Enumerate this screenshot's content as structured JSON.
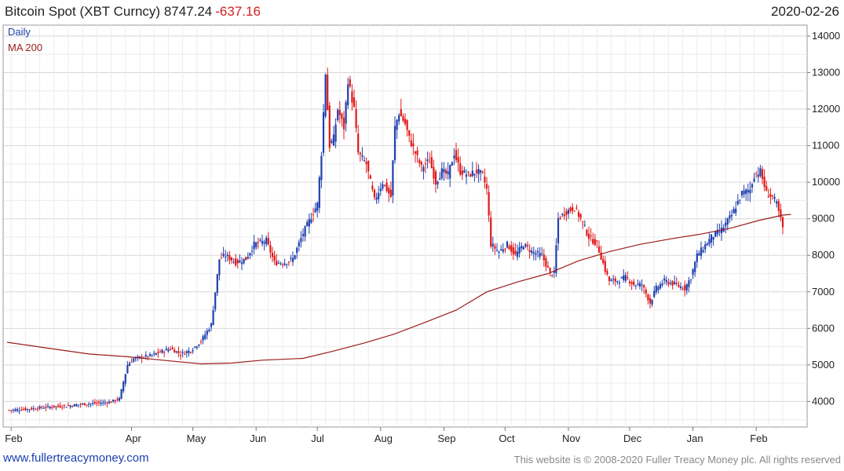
{
  "header": {
    "title": "Bitcoin Spot (XBT Curncy) 8747.24",
    "change": "-637.16",
    "date": "2020-02-26"
  },
  "footer": {
    "link": "www.fullertreacymoney.com",
    "copyright": "This website is © 2008-2020 Fuller Treacy Money plc. All rights reserved"
  },
  "chart_data": {
    "type": "candlestick",
    "legend": [
      {
        "name": "Daily",
        "color": "#1e3fae"
      },
      {
        "name": "MA 200",
        "color": "#9b1c1c"
      }
    ],
    "colors": {
      "up": "#1e3fae",
      "down": "#e01818",
      "ma": "#9b1c1c",
      "grid": "#d6d6d6"
    },
    "ylim": [
      3300,
      14300
    ],
    "yticks": [
      4000,
      5000,
      6000,
      7000,
      8000,
      9000,
      10000,
      11000,
      12000,
      13000,
      14000
    ],
    "xlim": [
      0,
      390
    ],
    "xticks": [
      {
        "label": "Feb",
        "i": 2
      },
      {
        "label": "Apr",
        "i": 61
      },
      {
        "label": "May",
        "i": 91
      },
      {
        "label": "Jun",
        "i": 122
      },
      {
        "label": "Jul",
        "i": 152
      },
      {
        "label": "Aug",
        "i": 183
      },
      {
        "label": "Sep",
        "i": 214
      },
      {
        "label": "Oct",
        "i": 244
      },
      {
        "label": "Nov",
        "i": 275
      },
      {
        "label": "Dec",
        "i": 305
      },
      {
        "label": "Jan",
        "i": 336
      },
      {
        "label": "Feb",
        "i": 367
      }
    ],
    "close_anchors": [
      [
        0,
        3760
      ],
      [
        10,
        3790
      ],
      [
        20,
        3850
      ],
      [
        30,
        3880
      ],
      [
        36,
        3920
      ],
      [
        50,
        3980
      ],
      [
        55,
        4070
      ],
      [
        59,
        5000
      ],
      [
        62,
        5170
      ],
      [
        70,
        5250
      ],
      [
        80,
        5450
      ],
      [
        85,
        5300
      ],
      [
        90,
        5400
      ],
      [
        95,
        5650
      ],
      [
        100,
        6100
      ],
      [
        104,
        7900
      ],
      [
        107,
        8000
      ],
      [
        112,
        7800
      ],
      [
        117,
        7900
      ],
      [
        121,
        8300
      ],
      [
        127,
        8400
      ],
      [
        131,
        7800
      ],
      [
        136,
        7800
      ],
      [
        140,
        7900
      ],
      [
        145,
        8600
      ],
      [
        152,
        9400
      ],
      [
        154,
        10800
      ],
      [
        156,
        13000
      ],
      [
        158,
        11000
      ],
      [
        160,
        11200
      ],
      [
        162,
        12000
      ],
      [
        165,
        11500
      ],
      [
        167,
        12800
      ],
      [
        170,
        12000
      ],
      [
        172,
        10800
      ],
      [
        176,
        10500
      ],
      [
        180,
        9500
      ],
      [
        184,
        10000
      ],
      [
        188,
        9600
      ],
      [
        190,
        11500
      ],
      [
        192,
        11900
      ],
      [
        195,
        11600
      ],
      [
        197,
        11200
      ],
      [
        200,
        10800
      ],
      [
        203,
        10400
      ],
      [
        207,
        10600
      ],
      [
        210,
        10000
      ],
      [
        213,
        10300
      ],
      [
        216,
        10200
      ],
      [
        219,
        10800
      ],
      [
        222,
        10300
      ],
      [
        226,
        10200
      ],
      [
        230,
        10300
      ],
      [
        233,
        10200
      ],
      [
        235,
        9800
      ],
      [
        237,
        8300
      ],
      [
        241,
        8100
      ],
      [
        245,
        8300
      ],
      [
        249,
        8000
      ],
      [
        253,
        8300
      ],
      [
        257,
        8100
      ],
      [
        262,
        8000
      ],
      [
        266,
        7500
      ],
      [
        268,
        7500
      ],
      [
        270,
        9000
      ],
      [
        274,
        9200
      ],
      [
        278,
        9300
      ],
      [
        281,
        9000
      ],
      [
        285,
        8500
      ],
      [
        289,
        8300
      ],
      [
        293,
        7600
      ],
      [
        295,
        7300
      ],
      [
        299,
        7300
      ],
      [
        303,
        7400
      ],
      [
        307,
        7200
      ],
      [
        311,
        7200
      ],
      [
        315,
        6700
      ],
      [
        318,
        7100
      ],
      [
        322,
        7300
      ],
      [
        327,
        7200
      ],
      [
        332,
        7100
      ],
      [
        335,
        7400
      ],
      [
        338,
        8000
      ],
      [
        341,
        8200
      ],
      [
        345,
        8500
      ],
      [
        350,
        8700
      ],
      [
        355,
        9100
      ],
      [
        360,
        9700
      ],
      [
        364,
        9800
      ],
      [
        366,
        10200
      ],
      [
        369,
        10300
      ],
      [
        372,
        9700
      ],
      [
        375,
        9600
      ],
      [
        377,
        9400
      ],
      [
        380,
        8750
      ]
    ],
    "ma200": [
      [
        0,
        5620
      ],
      [
        20,
        5460
      ],
      [
        40,
        5300
      ],
      [
        60,
        5220
      ],
      [
        80,
        5110
      ],
      [
        95,
        5030
      ],
      [
        110,
        5050
      ],
      [
        125,
        5130
      ],
      [
        145,
        5180
      ],
      [
        160,
        5380
      ],
      [
        175,
        5600
      ],
      [
        190,
        5850
      ],
      [
        205,
        6170
      ],
      [
        220,
        6500
      ],
      [
        235,
        7000
      ],
      [
        250,
        7270
      ],
      [
        265,
        7500
      ],
      [
        280,
        7850
      ],
      [
        295,
        8100
      ],
      [
        310,
        8300
      ],
      [
        325,
        8450
      ],
      [
        340,
        8580
      ],
      [
        355,
        8750
      ],
      [
        368,
        8950
      ],
      [
        380,
        9100
      ],
      [
        384,
        9120
      ]
    ]
  }
}
